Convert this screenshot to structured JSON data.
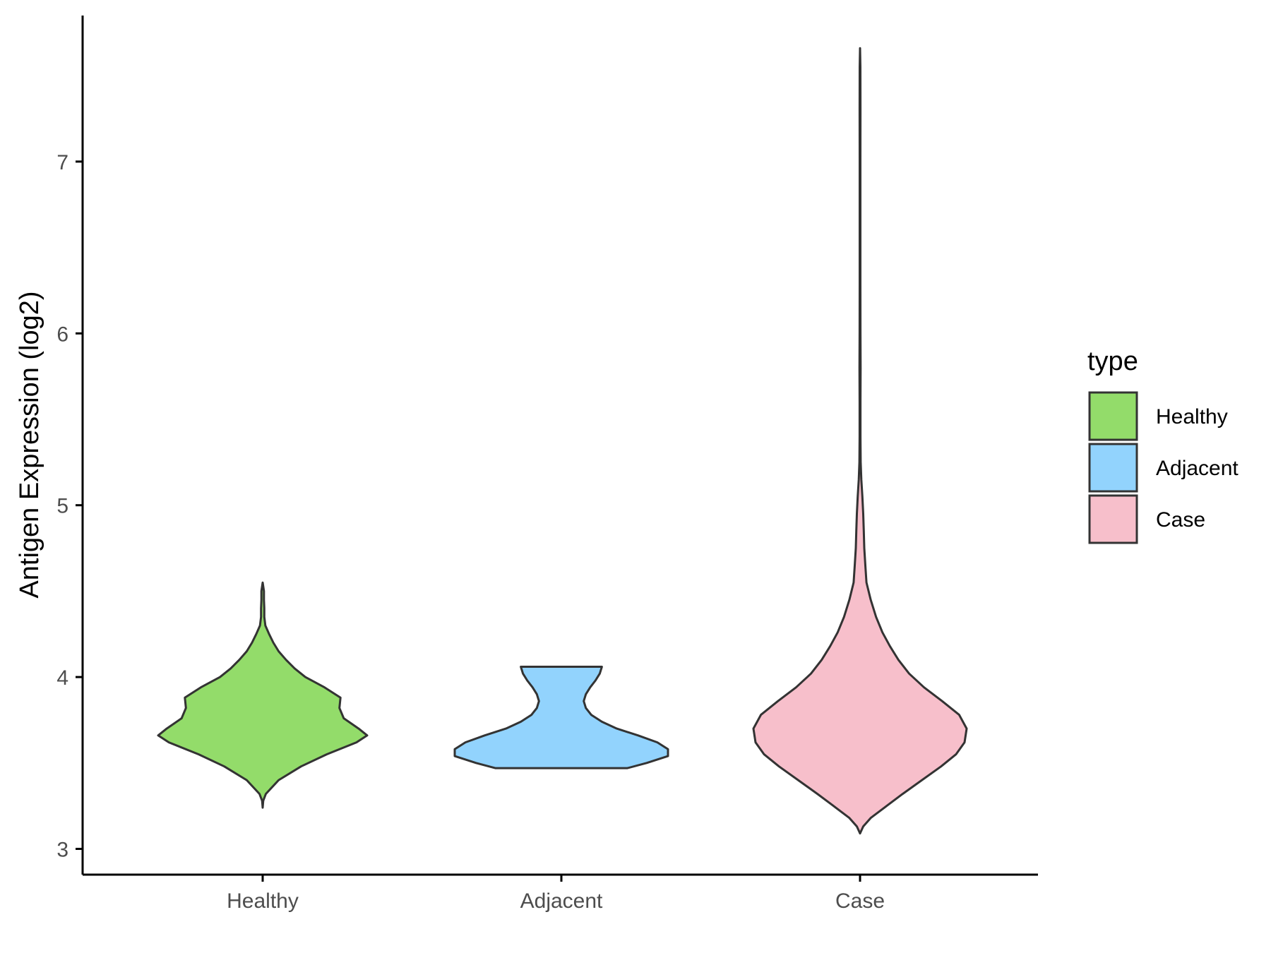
{
  "chart_data": {
    "type": "violin",
    "title": "",
    "xlabel": "",
    "ylabel": "Antigen Expression (log2)",
    "ylim": [
      2.85,
      7.85
    ],
    "yticks": [
      3,
      4,
      5,
      6,
      7
    ],
    "grid": false,
    "legend": {
      "title": "type",
      "placement": "right",
      "entries": [
        "Healthy",
        "Adjacent",
        "Case"
      ]
    },
    "categories": [
      "Healthy",
      "Adjacent",
      "Case"
    ],
    "series": [
      {
        "name": "Healthy",
        "color": "#93dc6a",
        "min": 3.24,
        "max": 4.55,
        "density": [
          [
            3.24,
            0.0
          ],
          [
            3.28,
            0.005
          ],
          [
            3.32,
            0.03
          ],
          [
            3.4,
            0.15
          ],
          [
            3.48,
            0.36
          ],
          [
            3.55,
            0.6
          ],
          [
            3.62,
            0.88
          ],
          [
            3.66,
            0.98
          ],
          [
            3.7,
            0.9
          ],
          [
            3.76,
            0.76
          ],
          [
            3.82,
            0.72
          ],
          [
            3.88,
            0.73
          ],
          [
            3.94,
            0.58
          ],
          [
            4.0,
            0.4
          ],
          [
            4.05,
            0.3
          ],
          [
            4.1,
            0.22
          ],
          [
            4.15,
            0.15
          ],
          [
            4.2,
            0.1
          ],
          [
            4.25,
            0.06
          ],
          [
            4.3,
            0.025
          ],
          [
            4.35,
            0.015
          ],
          [
            4.4,
            0.015
          ],
          [
            4.45,
            0.012
          ],
          [
            4.5,
            0.012
          ],
          [
            4.55,
            0.0
          ]
        ]
      },
      {
        "name": "Adjacent",
        "color": "#92d3fd",
        "min": 3.47,
        "max": 4.06,
        "density": [
          [
            3.47,
            0.62
          ],
          [
            3.5,
            0.8
          ],
          [
            3.54,
            1.0
          ],
          [
            3.58,
            1.0
          ],
          [
            3.62,
            0.9
          ],
          [
            3.66,
            0.72
          ],
          [
            3.7,
            0.52
          ],
          [
            3.74,
            0.38
          ],
          [
            3.78,
            0.28
          ],
          [
            3.82,
            0.23
          ],
          [
            3.86,
            0.21
          ],
          [
            3.9,
            0.23
          ],
          [
            3.94,
            0.27
          ],
          [
            3.98,
            0.32
          ],
          [
            4.02,
            0.36
          ],
          [
            4.06,
            0.38
          ]
        ]
      },
      {
        "name": "Case",
        "color": "#f7bfcb",
        "min": 3.09,
        "max": 7.66,
        "density": [
          [
            3.09,
            0.0
          ],
          [
            3.13,
            0.03
          ],
          [
            3.18,
            0.1
          ],
          [
            3.25,
            0.25
          ],
          [
            3.32,
            0.4
          ],
          [
            3.4,
            0.58
          ],
          [
            3.48,
            0.76
          ],
          [
            3.55,
            0.9
          ],
          [
            3.62,
            0.98
          ],
          [
            3.7,
            1.0
          ],
          [
            3.78,
            0.93
          ],
          [
            3.86,
            0.77
          ],
          [
            3.94,
            0.6
          ],
          [
            4.02,
            0.46
          ],
          [
            4.1,
            0.36
          ],
          [
            4.18,
            0.28
          ],
          [
            4.26,
            0.21
          ],
          [
            4.35,
            0.15
          ],
          [
            4.45,
            0.1
          ],
          [
            4.55,
            0.06
          ],
          [
            4.65,
            0.05
          ],
          [
            4.75,
            0.04
          ],
          [
            4.85,
            0.035
          ],
          [
            4.95,
            0.03
          ],
          [
            5.05,
            0.022
          ],
          [
            5.15,
            0.012
          ],
          [
            5.25,
            0.006
          ],
          [
            5.4,
            0.004
          ],
          [
            5.6,
            0.004
          ],
          [
            5.8,
            0.005
          ],
          [
            6.0,
            0.004
          ],
          [
            6.3,
            0.003
          ],
          [
            6.6,
            0.003
          ],
          [
            7.0,
            0.003
          ],
          [
            7.3,
            0.004
          ],
          [
            7.55,
            0.003
          ],
          [
            7.66,
            0.0
          ]
        ]
      }
    ]
  }
}
